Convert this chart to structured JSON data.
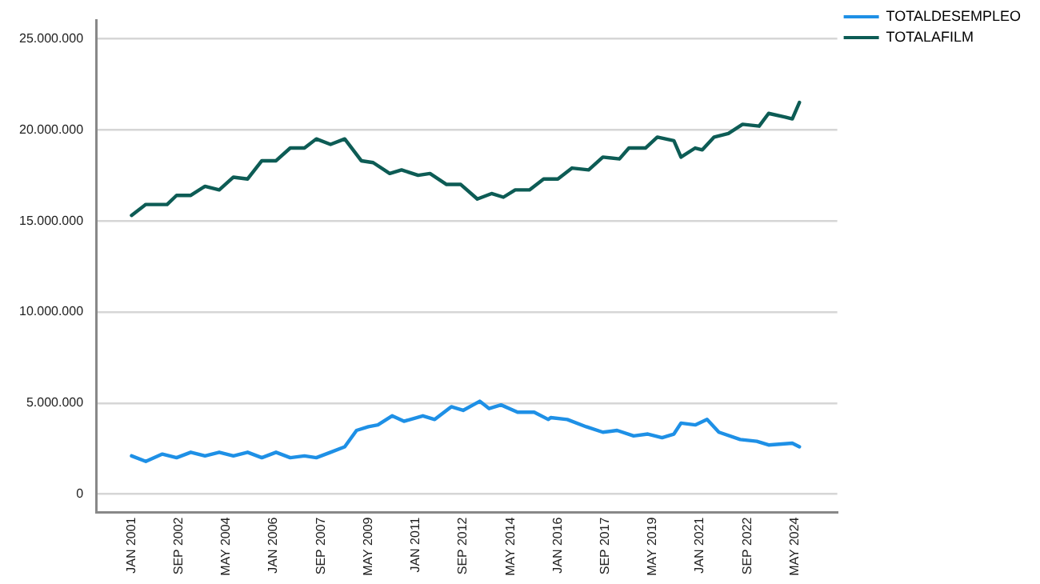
{
  "chart_data": {
    "type": "line",
    "xlim": [
      "1999-10",
      "2025-11"
    ],
    "xticks": [
      {
        "value": "2001-01",
        "label": "JAN 2001"
      },
      {
        "value": "2002-09",
        "label": "SEP 2002"
      },
      {
        "value": "2004-05",
        "label": "MAY 2004"
      },
      {
        "value": "2006-01",
        "label": "JAN 2006"
      },
      {
        "value": "2007-09",
        "label": "SEP 2007"
      },
      {
        "value": "2009-05",
        "label": "MAY 2009"
      },
      {
        "value": "2011-01",
        "label": "JAN 2011"
      },
      {
        "value": "2012-09",
        "label": "SEP 2012"
      },
      {
        "value": "2014-05",
        "label": "MAY 2014"
      },
      {
        "value": "2016-01",
        "label": "JAN 2016"
      },
      {
        "value": "2017-09",
        "label": "SEP 2017"
      },
      {
        "value": "2019-05",
        "label": "MAY 2019"
      },
      {
        "value": "2021-01",
        "label": "JAN 2021"
      },
      {
        "value": "2022-09",
        "label": "SEP 2022"
      },
      {
        "value": "2024-05",
        "label": "MAY 2024"
      }
    ],
    "ylim": [
      -1000000,
      26000000
    ],
    "yticks": [
      0,
      {
        "value": 5000000,
        "label": "5.000.000"
      },
      {
        "value": 10000000,
        "label": "10.000.000"
      },
      {
        "value": 15000000,
        "label": "15.000.000"
      },
      {
        "value": 20000000,
        "label": "20.000.000"
      },
      {
        "value": 25000000,
        "label": "25.000.000"
      }
    ],
    "grid": "y",
    "legend": "top right",
    "marker": "none",
    "line_style": "solid",
    "series": [
      {
        "name": "TOTALDESEMPLEO",
        "color": "#1e90e6",
        "x": [
          "2001-01",
          "2001-07",
          "2002-02",
          "2002-08",
          "2003-02",
          "2003-08",
          "2004-02",
          "2004-08",
          "2005-02",
          "2005-08",
          "2006-02",
          "2006-08",
          "2007-02",
          "2007-07",
          "2008-01",
          "2008-07",
          "2008-12",
          "2009-05",
          "2009-09",
          "2010-03",
          "2010-08",
          "2011-04",
          "2011-09",
          "2012-04",
          "2012-09",
          "2013-04",
          "2013-08",
          "2014-01",
          "2014-08",
          "2015-03",
          "2015-09",
          "2015-10",
          "2016-05",
          "2017-01",
          "2017-08",
          "2018-02",
          "2018-09",
          "2019-03",
          "2019-09",
          "2020-02",
          "2020-05",
          "2020-11",
          "2021-04",
          "2021-09",
          "2022-06",
          "2023-01",
          "2023-06",
          "2024-04",
          "2024-07"
        ],
        "values": [
          2100000,
          1800000,
          2200000,
          2000000,
          2300000,
          2100000,
          2300000,
          2100000,
          2300000,
          2000000,
          2300000,
          2000000,
          2100000,
          2000000,
          2300000,
          2600000,
          3500000,
          3700000,
          3800000,
          4300000,
          4000000,
          4300000,
          4100000,
          4800000,
          4600000,
          5100000,
          4700000,
          4900000,
          4500000,
          4500000,
          4100000,
          4200000,
          4100000,
          3700000,
          3400000,
          3500000,
          3200000,
          3300000,
          3100000,
          3300000,
          3900000,
          3800000,
          4100000,
          3400000,
          3000000,
          2900000,
          2700000,
          2800000,
          2600000
        ]
      },
      {
        "name": "TOTALAFILM",
        "color": "#0d5c55",
        "x": [
          "2001-01",
          "2001-07",
          "2002-04",
          "2002-08",
          "2003-02",
          "2003-08",
          "2004-02",
          "2004-08",
          "2005-02",
          "2005-08",
          "2006-02",
          "2006-08",
          "2007-02",
          "2007-07",
          "2008-01",
          "2008-07",
          "2009-02",
          "2009-07",
          "2010-02",
          "2010-07",
          "2011-02",
          "2011-07",
          "2012-02",
          "2012-08",
          "2013-03",
          "2013-09",
          "2014-02",
          "2014-07",
          "2015-01",
          "2015-07",
          "2016-01",
          "2016-07",
          "2017-02",
          "2017-08",
          "2018-03",
          "2018-07",
          "2019-02",
          "2019-07",
          "2020-02",
          "2020-05",
          "2020-11",
          "2021-02",
          "2021-07",
          "2022-01",
          "2022-07",
          "2023-02",
          "2023-06",
          "2024-01",
          "2024-04",
          "2024-07"
        ],
        "values": [
          15300000,
          15900000,
          15900000,
          16400000,
          16400000,
          16900000,
          16700000,
          17400000,
          17300000,
          18300000,
          18300000,
          19000000,
          19000000,
          19500000,
          19200000,
          19500000,
          18300000,
          18200000,
          17600000,
          17800000,
          17500000,
          17600000,
          17000000,
          17000000,
          16200000,
          16500000,
          16300000,
          16700000,
          16700000,
          17300000,
          17300000,
          17900000,
          17800000,
          18500000,
          18400000,
          19000000,
          19000000,
          19600000,
          19400000,
          18500000,
          19000000,
          18900000,
          19600000,
          19800000,
          20300000,
          20200000,
          20900000,
          20700000,
          20600000,
          21500000
        ]
      }
    ]
  }
}
